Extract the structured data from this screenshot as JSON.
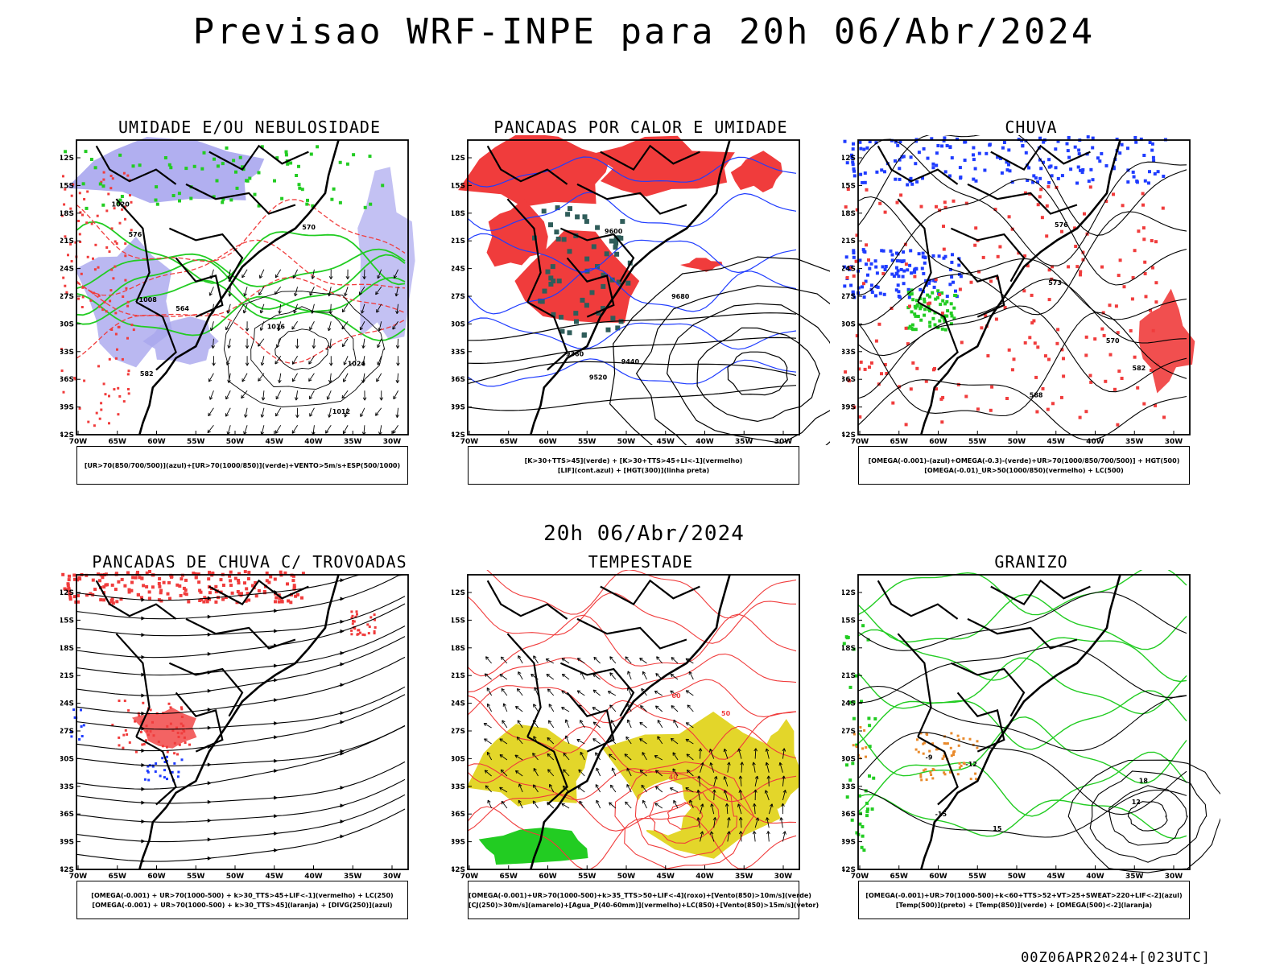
{
  "header": {
    "title": "Previsao WRF-INPE  para 20h 06/Abr/2024"
  },
  "mid_label": "20h 06/Abr/2024",
  "footer": "00Z06APR2024+[023UTC]",
  "axis": {
    "lat_labels": [
      "12S",
      "15S",
      "18S",
      "21S",
      "24S",
      "27S",
      "30S",
      "33S",
      "36S",
      "39S",
      "42S"
    ],
    "lon_labels": [
      "70W",
      "65W",
      "60W",
      "55W",
      "50W",
      "45W",
      "40W",
      "35W",
      "30W"
    ]
  },
  "colors": {
    "blue_humidity": "#a9a6ee",
    "green": "#22cc22",
    "red": "#f03c3c",
    "blue": "#1f3cff",
    "yellow": "#e3d62a",
    "orange": "#e98a2c",
    "teal": "#2f5d5a"
  },
  "panels": [
    {
      "title": "UMIDADE E/OU NEBULOSIDADE",
      "legend": [
        "[UR>70(850/700/500)](azul)+[UR>70(1000/850)](verde)+VENTO>5m/s+ESP(500/1000)"
      ],
      "contour_labels": [
        "1012",
        "1008",
        "1016",
        "1020",
        "1024",
        "576",
        "582",
        "564",
        "570"
      ]
    },
    {
      "title": "PANCADAS POR CALOR E UMIDADE",
      "legend": [
        "[K>30+TTS>45](verde) + [K>30+TTS>45+LI<-1](vermelho)",
        "[LIF](cont.azul) + [HGT(300)](linha preta)"
      ],
      "contour_labels": [
        "9680",
        "9600",
        "9520",
        "9440",
        "9360"
      ]
    },
    {
      "title": "CHUVA",
      "legend": [
        "[OMEGA(-0.001)-(azul)+OMEGA(-0.3)-(verde)+UR>70(1000/850/700/500)] + HGT(500)",
        "[OMEGA(-0.01)_UR>50(1000/850)(vermelho) + LC(500)"
      ],
      "contour_labels": [
        "588",
        "582",
        "576",
        "573",
        "570"
      ]
    },
    {
      "title": "PANCADAS DE CHUVA C/ TROVOADAS",
      "legend": [
        "[OMEGA(-0.001) + UR>70(1000-500) + k>30_TTS>45+LIF<-1](vermelho) + LC(250)",
        "[OMEGA(-0.001) + UR>70(1000-500) + k>30_TTS>45](laranja) + [DIVG(250)](azul)"
      ],
      "contour_labels": []
    },
    {
      "title": "TEMPESTADE",
      "legend": [
        "[OMEGA(-0.001)+UR>70(1000-500)+k>35_TTS>50+LIF<-4](roxo)+[Vento(850)>10m/s](verde)",
        "[CJ(250)>30m/s](amarelo)+[Agua_P(40-60mm)](vermelho)+LC(850)+[Vento(850)>15m/s](vetor)"
      ],
      "contour_labels": [
        "40",
        "50",
        "60"
      ]
    },
    {
      "title": "GRANIZO",
      "legend": [
        "[OMEGA(-0.001)+UR>70(1000-500)+k<60+TTS>52+VT>25+SWEAT>220+LIF<-2](azul)",
        "[Temp(500)](preto) + [Temp(850)](verde) + [OMEGA(500)<-2](laranja)"
      ],
      "contour_labels": [
        "-12",
        "-15",
        "-9",
        "15",
        "12",
        "18"
      ]
    }
  ]
}
